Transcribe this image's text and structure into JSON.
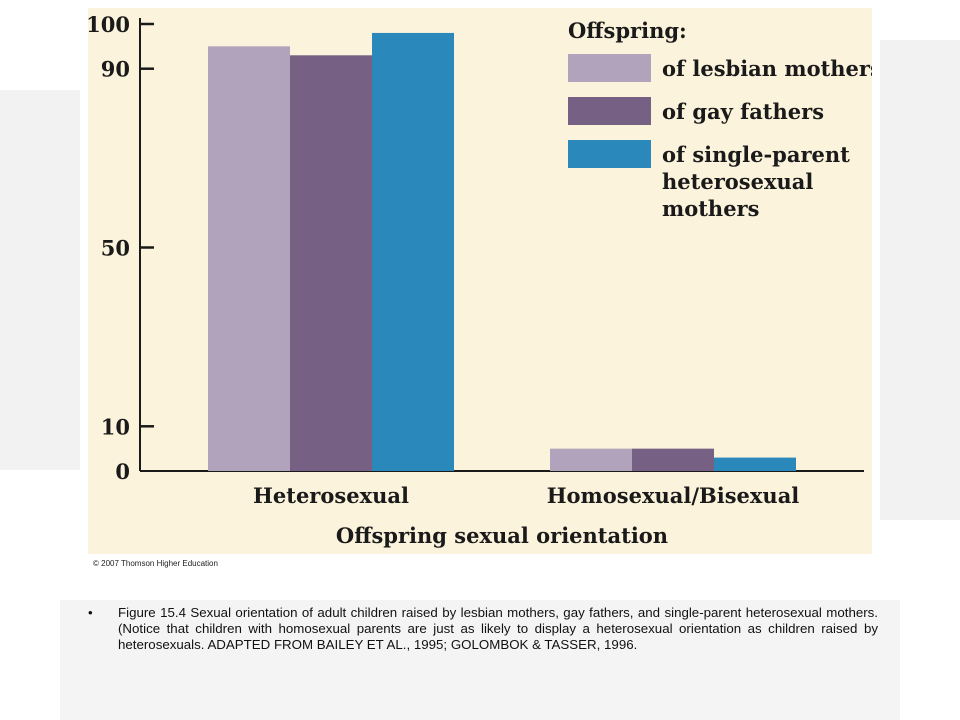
{
  "chart_data": {
    "type": "bar",
    "categories": [
      "Heterosexual",
      "Homosexual/Bisexual"
    ],
    "series": [
      {
        "name": "of lesbian mothers",
        "values": [
          95,
          5
        ],
        "color": "#b1a3bb"
      },
      {
        "name": "of gay fathers",
        "values": [
          93,
          5
        ],
        "color": "#766185"
      },
      {
        "name": "of single-parent heterosexual mothers",
        "values": [
          98,
          3
        ],
        "color": "#2b88bb"
      }
    ],
    "legend_lines": [
      [
        "of lesbian mothers"
      ],
      [
        "of gay fathers"
      ],
      [
        "of single-parent",
        "heterosexual",
        "mothers"
      ]
    ],
    "legend_title": "Offspring:",
    "legend_position": "top-right",
    "xlabel": "Offspring sexual orientation",
    "ylabel": "",
    "yticks": [
      0,
      10,
      50,
      90,
      100
    ],
    "ylim": [
      0,
      100
    ],
    "grid": false
  },
  "copyright": "© 2007 Thomson Higher Education",
  "caption": {
    "bullet": "•",
    "text": "Figure 15.4 Sexual orientation of adult children raised by lesbian mothers, gay fathers, and single-parent heterosexual mothers. (Notice that children with homosexual parents are just as likely to display a heterosexual orientation as children raised by heterosexuals.  ADAPTED FROM BAILEY ET AL., 1995; GOLOMBOK & TASSER, 1996."
  },
  "colors": {
    "figure_background": "#fbf3dc",
    "slide_background": "#f2f2f2"
  }
}
